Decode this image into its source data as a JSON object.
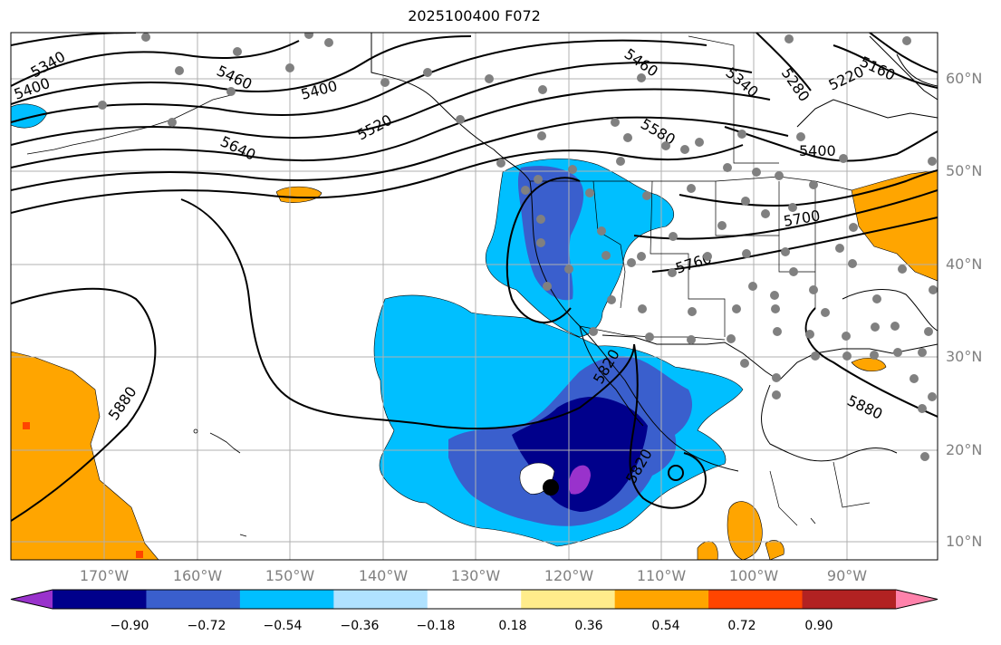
{
  "title": "2025100400 F072",
  "lat_labels": [
    "60°N",
    "50°N",
    "40°N",
    "30°N",
    "20°N",
    "10°N"
  ],
  "lon_labels": [
    "170°W",
    "160°W",
    "150°W",
    "140°W",
    "130°W",
    "120°W",
    "110°W",
    "100°W",
    "90°W"
  ],
  "colorbar": {
    "ticks": [
      "−0.90",
      "−0.72",
      "−0.54",
      "−0.36",
      "−0.18",
      "0.18",
      "0.36",
      "0.54",
      "0.72",
      "0.90"
    ],
    "colors": [
      "#9932cc",
      "#00008b",
      "#3a5fcd",
      "#00bfff",
      "#b0e2ff",
      "#ffffff",
      "#ffec8b",
      "#ffa500",
      "#ff4500",
      "#b22222",
      "#ff82ab"
    ]
  },
  "contour_labels": [
    "5340",
    "5400",
    "5460",
    "5400",
    "5520",
    "5640",
    "5460",
    "5340",
    "5280",
    "5160",
    "5220",
    "5580",
    "5400",
    "5700",
    "5760",
    "5880",
    "5820",
    "5880",
    "5820"
  ]
}
